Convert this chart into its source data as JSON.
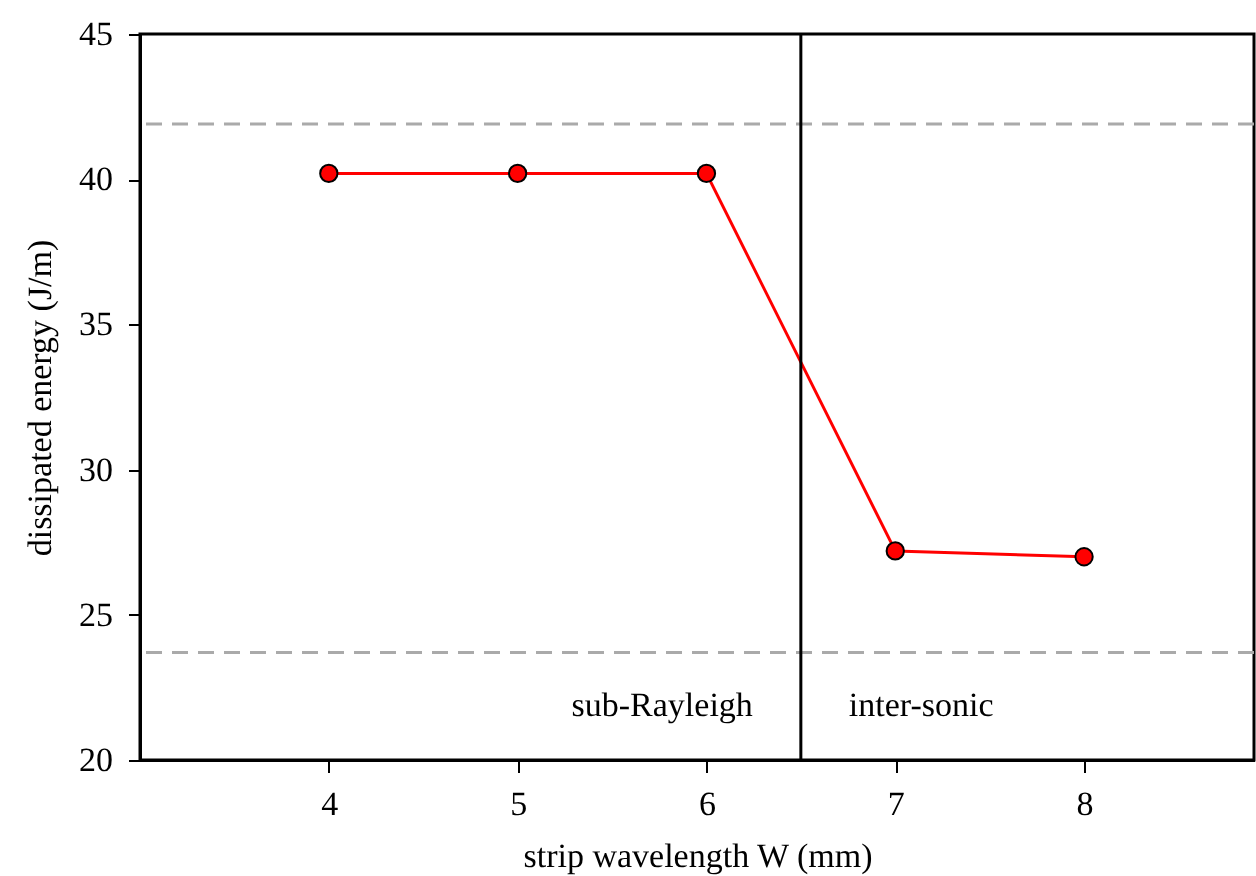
{
  "chart_data": {
    "type": "line",
    "xlabel": "strip wavelength W (mm)",
    "ylabel": "dissipated energy (J/m)",
    "x": [
      4,
      5,
      6,
      7,
      8
    ],
    "series": [
      {
        "color": "#ff0000",
        "values": [
          40.2,
          40.2,
          40.2,
          27.2,
          27.0
        ]
      }
    ],
    "xlim": [
      3,
      8.9
    ],
    "xticks": [
      4,
      5,
      6,
      7,
      8
    ],
    "ylim": [
      20,
      45
    ],
    "yticks": [
      20,
      25,
      30,
      35,
      40,
      45
    ],
    "ref_lines": [
      {
        "axis": "y",
        "value": 41.9,
        "color": "#aaaaaa",
        "line_style": "dashed"
      },
      {
        "axis": "y",
        "value": 23.7,
        "color": "#aaaaaa",
        "line_style": "dashed"
      },
      {
        "axis": "x",
        "value": 6.5,
        "color": "#000000",
        "line_style": "solid"
      }
    ],
    "annotations": [
      "sub-Rayleigh",
      "inter-sonic"
    ],
    "marker": "circle",
    "line_style": "solid",
    "grid": false
  }
}
